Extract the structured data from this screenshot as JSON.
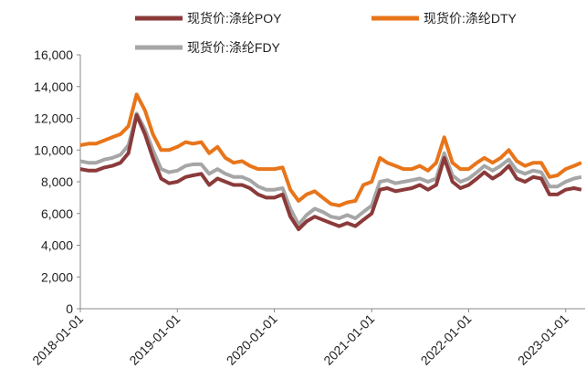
{
  "chart_data": {
    "type": "line",
    "x": [
      "2018-01-01",
      "2018-02-01",
      "2018-03-01",
      "2018-04-01",
      "2018-05-01",
      "2018-06-01",
      "2018-07-01",
      "2018-08-01",
      "2018-09-01",
      "2018-10-01",
      "2018-11-01",
      "2018-12-01",
      "2019-01-01",
      "2019-02-01",
      "2019-03-01",
      "2019-04-01",
      "2019-05-01",
      "2019-06-01",
      "2019-07-01",
      "2019-08-01",
      "2019-09-01",
      "2019-10-01",
      "2019-11-01",
      "2019-12-01",
      "2020-01-01",
      "2020-02-01",
      "2020-03-01",
      "2020-04-01",
      "2020-05-01",
      "2020-06-01",
      "2020-07-01",
      "2020-08-01",
      "2020-09-01",
      "2020-10-01",
      "2020-11-01",
      "2020-12-01",
      "2021-01-01",
      "2021-02-01",
      "2021-03-01",
      "2021-04-01",
      "2021-05-01",
      "2021-06-01",
      "2021-07-01",
      "2021-08-01",
      "2021-09-01",
      "2021-10-01",
      "2021-11-01",
      "2021-12-01",
      "2022-01-01",
      "2022-02-01",
      "2022-03-01",
      "2022-04-01",
      "2022-05-01",
      "2022-06-01",
      "2022-07-01",
      "2022-08-01",
      "2022-09-01",
      "2022-10-01",
      "2022-11-01",
      "2022-12-01",
      "2023-01-01",
      "2023-02-01",
      "2023-03-01"
    ],
    "series": [
      {
        "name": "现货价:涤纶DTY",
        "color": "#e8751a",
        "values": [
          10300,
          10400,
          10400,
          10600,
          10800,
          11000,
          11500,
          13500,
          12500,
          11000,
          10000,
          10000,
          10200,
          10500,
          10400,
          10500,
          9800,
          10200,
          9500,
          9200,
          9300,
          9000,
          8800,
          8800,
          8800,
          8900,
          7500,
          6800,
          7200,
          7400,
          7000,
          6600,
          6500,
          6700,
          6800,
          7800,
          8000,
          9500,
          9200,
          9000,
          8800,
          8800,
          9000,
          8700,
          9200,
          10800,
          9200,
          8800,
          8800,
          9200,
          9500,
          9200,
          9500,
          10000,
          9300,
          9000,
          9200,
          9200,
          8300,
          8400,
          8800,
          9000,
          9200
        ]
      },
      {
        "name": "现货价:涤纶FDY",
        "color": "#a6a6a6",
        "values": [
          9300,
          9200,
          9200,
          9400,
          9500,
          9700,
          10300,
          12300,
          11300,
          10000,
          8800,
          8600,
          8700,
          9000,
          9100,
          9100,
          8500,
          8800,
          8500,
          8300,
          8300,
          8100,
          7700,
          7500,
          7500,
          7600,
          6300,
          5300,
          5900,
          6300,
          6100,
          5800,
          5700,
          5900,
          5700,
          6100,
          6500,
          8000,
          8100,
          7900,
          8000,
          8100,
          8200,
          8000,
          8200,
          9800,
          8400,
          8000,
          8200,
          8600,
          9000,
          8700,
          9000,
          9400,
          8700,
          8500,
          8700,
          8600,
          7700,
          7700,
          8000,
          8200,
          8300
        ]
      },
      {
        "name": "现货价:涤纶POY",
        "color": "#8b3a3a",
        "values": [
          8800,
          8700,
          8700,
          8900,
          9000,
          9200,
          9800,
          12200,
          11000,
          9500,
          8200,
          7900,
          8000,
          8300,
          8400,
          8500,
          7800,
          8200,
          8000,
          7800,
          7800,
          7600,
          7200,
          7000,
          7000,
          7200,
          5800,
          5000,
          5500,
          5800,
          5600,
          5400,
          5200,
          5400,
          5200,
          5600,
          6000,
          7500,
          7600,
          7400,
          7500,
          7600,
          7800,
          7500,
          7800,
          9500,
          8000,
          7600,
          7800,
          8200,
          8600,
          8200,
          8500,
          9000,
          8200,
          8000,
          8300,
          8200,
          7200,
          7200,
          7500,
          7600,
          7500
        ]
      }
    ],
    "legend_order": [
      2,
      0,
      1
    ],
    "xlim": [
      "2018-01-01",
      "2023-03-15"
    ],
    "xticks": [
      "2018-01-01",
      "2019-01-01",
      "2020-01-01",
      "2021-01-01",
      "2022-01-01",
      "2023-01-01"
    ],
    "ylim": [
      0,
      16000
    ],
    "yticks": [
      0,
      {
        "value": 2000,
        "label": "2,000"
      },
      {
        "value": 4000,
        "label": "4,000"
      },
      {
        "value": 6000,
        "label": "6,000"
      },
      {
        "value": 8000,
        "label": "8,000"
      },
      {
        "value": 10000,
        "label": "10,000"
      },
      {
        "value": 12000,
        "label": "12,000"
      },
      {
        "value": 14000,
        "label": "14,000"
      },
      {
        "value": 16000,
        "label": "16,000"
      }
    ]
  }
}
